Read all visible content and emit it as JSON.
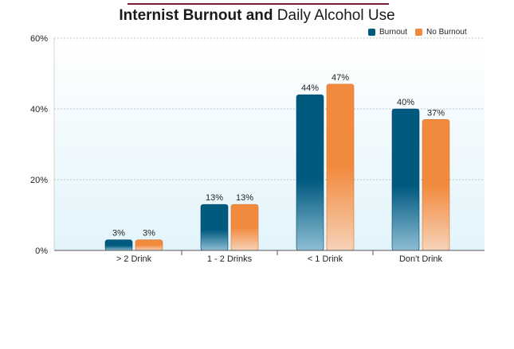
{
  "title_bold": "Internist Burnout and",
  "title_regular": "Daily Alcohol Use",
  "colors": {
    "burnout": "#005a80",
    "burnout_light": "#8fbdd4",
    "no_burnout": "#f28a3e",
    "no_burnout_light": "#f6d2b8",
    "title_rule": "#7a1f33",
    "plot_bg_top": "#ffffff",
    "plot_bg_bottom": "#e2f4fb"
  },
  "chart_data": {
    "type": "bar",
    "title": "Internist Burnout and Daily Alcohol Use",
    "categories": [
      "> 2 Drink",
      "1 - 2 Drinks",
      "< 1 Drink",
      "Don't Drink"
    ],
    "series": [
      {
        "name": "Burnout",
        "values": [
          3,
          13,
          44,
          40
        ],
        "labels": [
          "3%",
          "13%",
          "44%",
          "40%"
        ]
      },
      {
        "name": "No Burnout",
        "values": [
          3,
          13,
          47,
          37
        ],
        "labels": [
          "3%",
          "13%",
          "47%",
          "37%"
        ]
      }
    ],
    "ylim": [
      0,
      60
    ],
    "yticks": [
      0,
      20,
      40,
      60
    ],
    "ytick_labels": [
      "0%",
      "20%",
      "40%",
      "60%"
    ],
    "grid": true,
    "legend": "top-right"
  }
}
